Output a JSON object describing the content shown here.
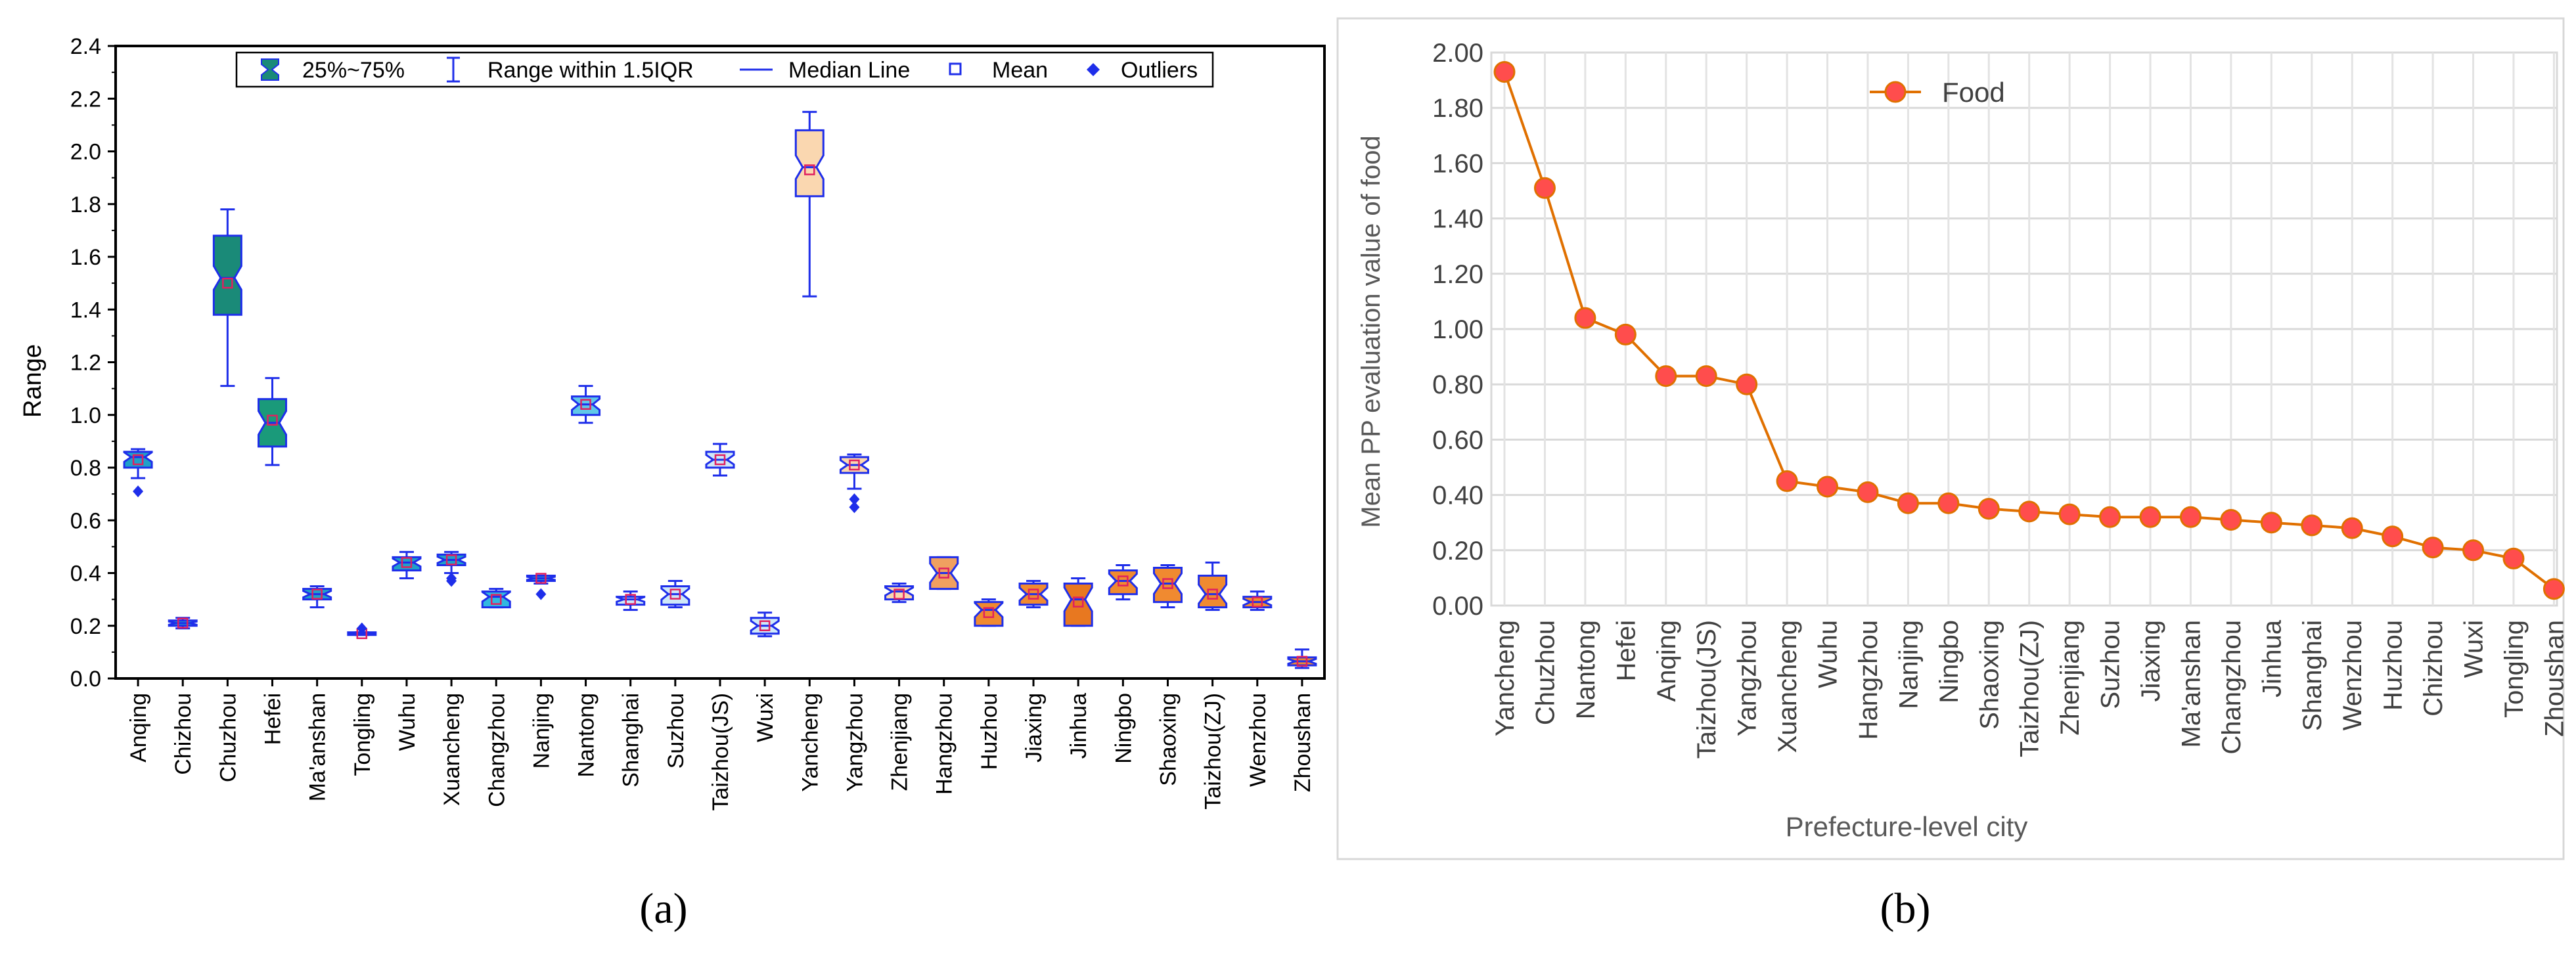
{
  "panel_a": {
    "label": "(a)",
    "legend": {
      "box": "25%~75%",
      "range": "Range within 1.5IQR",
      "median": "Median Line",
      "mean": "Mean",
      "outliers": "Outliers"
    }
  },
  "panel_b": {
    "label": "(b)"
  },
  "chart_data": [
    {
      "type": "box",
      "title": "",
      "xlabel": "",
      "ylabel": "Range",
      "ylim": [
        0,
        2.4
      ],
      "yticks": [
        0.0,
        0.2,
        0.4,
        0.6,
        0.8,
        1.0,
        1.2,
        1.4,
        1.6,
        1.8,
        2.0,
        2.2,
        2.4
      ],
      "ytick_labels": [
        "0.0",
        "0.2",
        "0.4",
        "0.6",
        "0.8",
        "1.0",
        "1.2",
        "1.4",
        "1.6",
        "1.8",
        "2.0",
        "2.2",
        "2.4"
      ],
      "categories": [
        "Anqing",
        "Chizhou",
        "Chuzhou",
        "Hefei",
        "Ma'anshan",
        "Tongling",
        "Wuhu",
        "Xuancheng",
        "Changzhou",
        "Nanjing",
        "Nantong",
        "Shanghai",
        "Suzhou",
        "Taizhou(JS)",
        "Wuxi",
        "Yancheng",
        "Yangzhou",
        "Zhenjiang",
        "Hangzhou",
        "Huzhou",
        "Jiaxing",
        "Jinhua",
        "Ningbo",
        "Shaoxing",
        "Taizhou(ZJ)",
        "Wenzhou",
        "Zhoushan"
      ],
      "boxes": [
        {
          "q1": 0.8,
          "median": 0.84,
          "q3": 0.86,
          "mean": 0.83,
          "whisker_low": 0.76,
          "whisker_high": 0.87,
          "outliers": [
            0.71
          ],
          "color": "#20a0c8"
        },
        {
          "q1": 0.2,
          "median": 0.21,
          "q3": 0.22,
          "mean": 0.21,
          "whisker_low": 0.19,
          "whisker_high": 0.23,
          "outliers": [],
          "color": "#20a0c8"
        },
        {
          "q1": 1.38,
          "median": 1.52,
          "q3": 1.68,
          "mean": 1.5,
          "whisker_low": 1.11,
          "whisker_high": 1.78,
          "outliers": [],
          "color": "#1a8a78"
        },
        {
          "q1": 0.88,
          "median": 0.97,
          "q3": 1.06,
          "mean": 0.98,
          "whisker_low": 0.81,
          "whisker_high": 1.14,
          "outliers": [],
          "color": "#1a9a7a"
        },
        {
          "q1": 0.3,
          "median": 0.32,
          "q3": 0.34,
          "mean": 0.32,
          "whisker_low": 0.27,
          "whisker_high": 0.35,
          "outliers": [],
          "color": "#20a0c8"
        },
        {
          "q1": 0.165,
          "median": 0.17,
          "q3": 0.175,
          "mean": 0.17,
          "whisker_low": 0.165,
          "whisker_high": 0.175,
          "outliers": [
            0.19
          ],
          "color": "#20a0c8"
        },
        {
          "q1": 0.41,
          "median": 0.44,
          "q3": 0.46,
          "mean": 0.44,
          "whisker_low": 0.38,
          "whisker_high": 0.48,
          "outliers": [],
          "color": "#20a0c8"
        },
        {
          "q1": 0.43,
          "median": 0.45,
          "q3": 0.47,
          "mean": 0.45,
          "whisker_low": 0.4,
          "whisker_high": 0.48,
          "outliers": [
            0.38,
            0.37
          ],
          "color": "#20a0c8"
        },
        {
          "q1": 0.27,
          "median": 0.31,
          "q3": 0.33,
          "mean": 0.3,
          "whisker_low": 0.27,
          "whisker_high": 0.34,
          "outliers": [],
          "color": "#30b8e0"
        },
        {
          "q1": 0.37,
          "median": 0.38,
          "q3": 0.39,
          "mean": 0.38,
          "whisker_low": 0.36,
          "whisker_high": 0.39,
          "outliers": [
            0.32
          ],
          "color": "#20a0c8"
        },
        {
          "q1": 1.0,
          "median": 1.04,
          "q3": 1.07,
          "mean": 1.04,
          "whisker_low": 0.97,
          "whisker_high": 1.11,
          "outliers": [],
          "color": "#60c8e8"
        },
        {
          "q1": 0.28,
          "median": 0.3,
          "q3": 0.31,
          "mean": 0.3,
          "whisker_low": 0.26,
          "whisker_high": 0.33,
          "outliers": [],
          "color": "#cfe8f8"
        },
        {
          "q1": 0.28,
          "median": 0.32,
          "q3": 0.35,
          "mean": 0.32,
          "whisker_low": 0.27,
          "whisker_high": 0.37,
          "outliers": [],
          "color": "#cfe8f8"
        },
        {
          "q1": 0.8,
          "median": 0.83,
          "q3": 0.86,
          "mean": 0.83,
          "whisker_low": 0.77,
          "whisker_high": 0.89,
          "outliers": [],
          "color": "#cfe8f8"
        },
        {
          "q1": 0.17,
          "median": 0.2,
          "q3": 0.23,
          "mean": 0.2,
          "whisker_low": 0.16,
          "whisker_high": 0.25,
          "outliers": [],
          "color": "#cfe8f8"
        },
        {
          "q1": 1.83,
          "median": 1.94,
          "q3": 2.08,
          "mean": 1.93,
          "whisker_low": 1.45,
          "whisker_high": 2.15,
          "outliers": [],
          "color": "#fad7b0"
        },
        {
          "q1": 0.78,
          "median": 0.81,
          "q3": 0.84,
          "mean": 0.81,
          "whisker_low": 0.72,
          "whisker_high": 0.85,
          "outliers": [
            0.68,
            0.65
          ],
          "color": "#fad7b0"
        },
        {
          "q1": 0.3,
          "median": 0.33,
          "q3": 0.35,
          "mean": 0.32,
          "whisker_low": 0.29,
          "whisker_high": 0.36,
          "outliers": [],
          "color": "#fad7b0"
        },
        {
          "q1": 0.34,
          "median": 0.4,
          "q3": 0.46,
          "mean": 0.4,
          "whisker_low": 0.34,
          "whisker_high": 0.46,
          "outliers": [],
          "color": "#f0a060"
        },
        {
          "q1": 0.2,
          "median": 0.26,
          "q3": 0.29,
          "mean": 0.25,
          "whisker_low": 0.2,
          "whisker_high": 0.3,
          "outliers": [],
          "color": "#f08a30"
        },
        {
          "q1": 0.28,
          "median": 0.32,
          "q3": 0.36,
          "mean": 0.32,
          "whisker_low": 0.27,
          "whisker_high": 0.37,
          "outliers": [],
          "color": "#f08a30"
        },
        {
          "q1": 0.2,
          "median": 0.3,
          "q3": 0.36,
          "mean": 0.29,
          "whisker_low": 0.2,
          "whisker_high": 0.38,
          "outliers": [],
          "color": "#e87820"
        },
        {
          "q1": 0.32,
          "median": 0.37,
          "q3": 0.41,
          "mean": 0.37,
          "whisker_low": 0.3,
          "whisker_high": 0.43,
          "outliers": [],
          "color": "#f08a30"
        },
        {
          "q1": 0.29,
          "median": 0.36,
          "q3": 0.42,
          "mean": 0.36,
          "whisker_low": 0.27,
          "whisker_high": 0.43,
          "outliers": [],
          "color": "#f08a30"
        },
        {
          "q1": 0.27,
          "median": 0.32,
          "q3": 0.39,
          "mean": 0.32,
          "whisker_low": 0.26,
          "whisker_high": 0.44,
          "outliers": [],
          "color": "#f08a30"
        },
        {
          "q1": 0.27,
          "median": 0.29,
          "q3": 0.31,
          "mean": 0.29,
          "whisker_low": 0.26,
          "whisker_high": 0.33,
          "outliers": [],
          "color": "#f08a30"
        },
        {
          "q1": 0.05,
          "median": 0.065,
          "q3": 0.08,
          "mean": 0.065,
          "whisker_low": 0.04,
          "whisker_high": 0.11,
          "outliers": [],
          "color": "#f08a30"
        }
      ]
    },
    {
      "type": "line",
      "title": "",
      "xlabel": "Prefecture-level city",
      "ylabel": "Mean PP evaluation value of food",
      "ylim": [
        0,
        2.0
      ],
      "yticks": [
        0.0,
        0.2,
        0.4,
        0.6,
        0.8,
        1.0,
        1.2,
        1.4,
        1.6,
        1.8,
        2.0
      ],
      "ytick_labels": [
        "0.00",
        "0.20",
        "0.40",
        "0.60",
        "0.80",
        "1.00",
        "1.20",
        "1.40",
        "1.60",
        "1.80",
        "2.00"
      ],
      "categories": [
        "Yancheng",
        "Chuzhou",
        "Nantong",
        "Hefei",
        "Anqing",
        "Taizhou(JS)",
        "Yangzhou",
        "Xuancheng",
        "Wuhu",
        "Hangzhou",
        "Nanjing",
        "Ningbo",
        "Shaoxing",
        "Taizhou(ZJ)",
        "Zhenjiang",
        "Suzhou",
        "Jiaxing",
        "Ma'anshan",
        "Changzhou",
        "Jinhua",
        "Shanghai",
        "Wenzhou",
        "Huzhou",
        "Chizhou",
        "Wuxi",
        "Tongling",
        "Zhoushan"
      ],
      "series": [
        {
          "name": "Food",
          "values": [
            1.93,
            1.51,
            1.04,
            0.98,
            0.83,
            0.83,
            0.8,
            0.45,
            0.43,
            0.41,
            0.37,
            0.37,
            0.35,
            0.34,
            0.33,
            0.32,
            0.32,
            0.32,
            0.31,
            0.3,
            0.29,
            0.28,
            0.25,
            0.21,
            0.2,
            0.17,
            0.06
          ]
        }
      ],
      "legend": "top-left"
    }
  ]
}
